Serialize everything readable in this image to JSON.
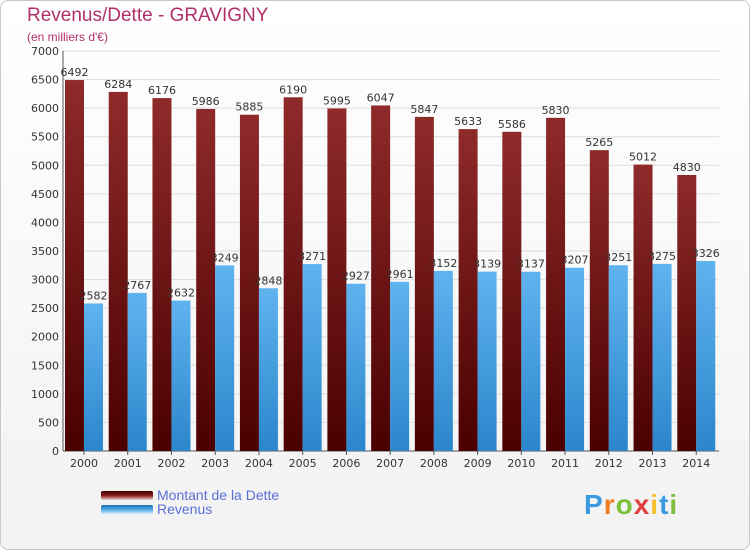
{
  "title": "Revenus/Dette - GRAVIGNY",
  "subtitle": "(en milliers d'€)",
  "logo": {
    "letters": [
      "P",
      "r",
      "o",
      "x",
      "i",
      "t",
      "i"
    ],
    "colors": [
      "#3a9be0",
      "#ef7c23",
      "#7bbf3a",
      "#e23f3f",
      "#f2c12e",
      "#3a9be0",
      "#7bbf3a"
    ]
  },
  "colors": {
    "dette": "#8b1a1a",
    "revenus": "#4fa8e8",
    "title": "#b0306a",
    "legend_text": "#5b6fd6"
  },
  "chart_data": {
    "type": "bar",
    "categories": [
      "2000",
      "2001",
      "2002",
      "2003",
      "2004",
      "2005",
      "2006",
      "2007",
      "2008",
      "2009",
      "2010",
      "2011",
      "2012",
      "2013",
      "2014"
    ],
    "series": [
      {
        "name": "Montant de la Dette",
        "values": [
          6492,
          6284,
          6176,
          5986,
          5885,
          6190,
          5995,
          6047,
          5847,
          5633,
          5586,
          5830,
          5265,
          5012,
          4830
        ]
      },
      {
        "name": "Revenus",
        "values": [
          2582,
          2767,
          2632,
          3249,
          2848,
          3271,
          2927,
          2961,
          3152,
          3139,
          3137,
          3207,
          3251,
          3275,
          3326
        ]
      }
    ],
    "ylim": [
      0,
      7000
    ],
    "yticks": [
      0,
      500,
      1000,
      1500,
      2000,
      2500,
      3000,
      3500,
      4000,
      4500,
      5000,
      5500,
      6000,
      6500,
      7000
    ],
    "grid": true,
    "legend": "bottom-left"
  }
}
